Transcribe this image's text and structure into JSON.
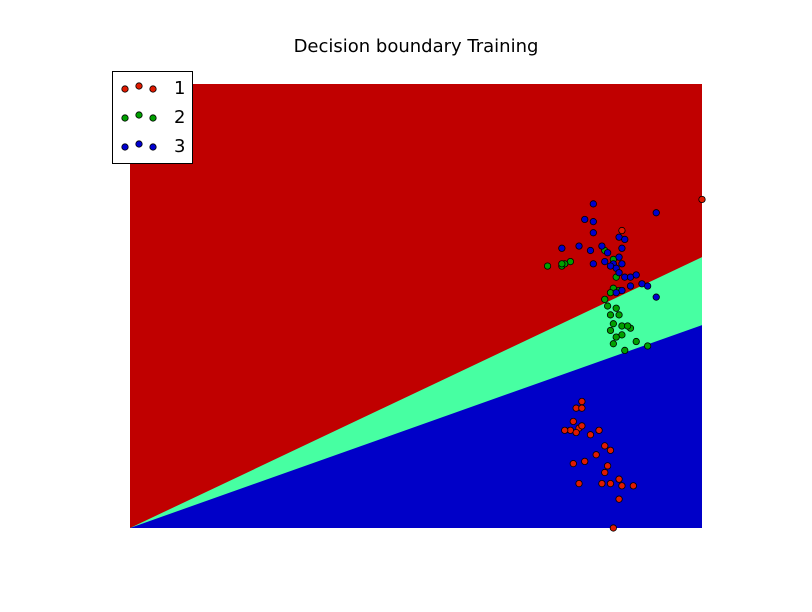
{
  "chart_data": {
    "type": "scatter",
    "title": "Decision boundary Training",
    "xlabel": "",
    "ylabel": "",
    "xlim": [
      0,
      10
    ],
    "ylim": [
      0,
      10
    ],
    "axes_visible": false,
    "grid": false,
    "legend_position": "top-left",
    "decision_regions": {
      "colors": {
        "1": "#c00000",
        "2": "#47ffa2",
        "3": "#0000c8"
      },
      "boundaries": [
        {
          "name": "1|2",
          "points": [
            [
              0,
              0
            ],
            [
              10,
              6.1
            ]
          ]
        },
        {
          "name": "2|3",
          "points": [
            [
              0,
              0
            ],
            [
              10,
              4.57
            ]
          ]
        }
      ],
      "order_top_to_bottom": [
        "1",
        "2",
        "3"
      ]
    },
    "series": [
      {
        "name": "1",
        "color": "#e01a00",
        "points": [
          [
            10.0,
            7.4
          ],
          [
            8.6,
            6.7
          ],
          [
            7.9,
            2.85
          ],
          [
            7.8,
            2.7
          ],
          [
            7.9,
            2.7
          ],
          [
            7.75,
            2.4
          ],
          [
            7.85,
            2.25
          ],
          [
            7.9,
            2.3
          ],
          [
            7.7,
            2.2
          ],
          [
            7.6,
            2.2
          ],
          [
            7.8,
            2.15
          ],
          [
            8.05,
            2.1
          ],
          [
            8.2,
            2.2
          ],
          [
            8.3,
            1.85
          ],
          [
            8.4,
            1.75
          ],
          [
            8.15,
            1.65
          ],
          [
            7.75,
            1.45
          ],
          [
            7.95,
            1.5
          ],
          [
            8.35,
            1.4
          ],
          [
            8.3,
            1.25
          ],
          [
            8.55,
            1.1
          ],
          [
            8.25,
            1.0
          ],
          [
            8.4,
            1.0
          ],
          [
            7.85,
            1.0
          ],
          [
            8.6,
            0.95
          ],
          [
            8.8,
            0.95
          ],
          [
            8.55,
            0.65
          ],
          [
            8.45,
            0.0
          ]
        ]
      },
      {
        "name": "2",
        "color": "#00a000",
        "points": [
          [
            7.55,
            5.9
          ],
          [
            7.7,
            6.0
          ],
          [
            7.6,
            5.95
          ],
          [
            7.3,
            5.9
          ],
          [
            7.55,
            5.95
          ],
          [
            8.3,
            6.25
          ],
          [
            8.45,
            6.05
          ],
          [
            8.5,
            5.65
          ],
          [
            8.45,
            5.4
          ],
          [
            8.55,
            5.35
          ],
          [
            8.4,
            5.3
          ],
          [
            8.3,
            5.15
          ],
          [
            8.35,
            5.0
          ],
          [
            8.5,
            4.95
          ],
          [
            8.55,
            4.8
          ],
          [
            8.4,
            4.8
          ],
          [
            8.45,
            4.6
          ],
          [
            8.6,
            4.55
          ],
          [
            8.75,
            4.5
          ],
          [
            8.7,
            4.55
          ],
          [
            8.6,
            4.35
          ],
          [
            8.5,
            4.3
          ],
          [
            8.4,
            4.45
          ],
          [
            8.65,
            4.0
          ],
          [
            8.85,
            4.2
          ],
          [
            8.45,
            4.15
          ],
          [
            9.05,
            4.1
          ]
        ]
      },
      {
        "name": "3",
        "color": "#0000d0",
        "points": [
          [
            8.1,
            7.3
          ],
          [
            9.2,
            7.1
          ],
          [
            7.95,
            6.95
          ],
          [
            8.1,
            6.9
          ],
          [
            8.1,
            6.65
          ],
          [
            8.55,
            6.55
          ],
          [
            8.65,
            6.5
          ],
          [
            7.55,
            6.3
          ],
          [
            7.85,
            6.35
          ],
          [
            8.05,
            6.25
          ],
          [
            8.25,
            6.35
          ],
          [
            8.35,
            6.2
          ],
          [
            8.6,
            6.3
          ],
          [
            8.55,
            6.1
          ],
          [
            8.3,
            6.0
          ],
          [
            8.45,
            5.95
          ],
          [
            8.6,
            5.95
          ],
          [
            8.5,
            5.85
          ],
          [
            8.65,
            5.65
          ],
          [
            8.75,
            5.65
          ],
          [
            8.85,
            5.7
          ],
          [
            8.95,
            5.5
          ],
          [
            8.75,
            5.45
          ],
          [
            9.05,
            5.45
          ],
          [
            9.2,
            5.2
          ],
          [
            8.6,
            5.35
          ],
          [
            8.5,
            5.3
          ],
          [
            8.4,
            5.9
          ],
          [
            8.55,
            5.75
          ],
          [
            8.1,
            5.95
          ]
        ]
      }
    ]
  }
}
